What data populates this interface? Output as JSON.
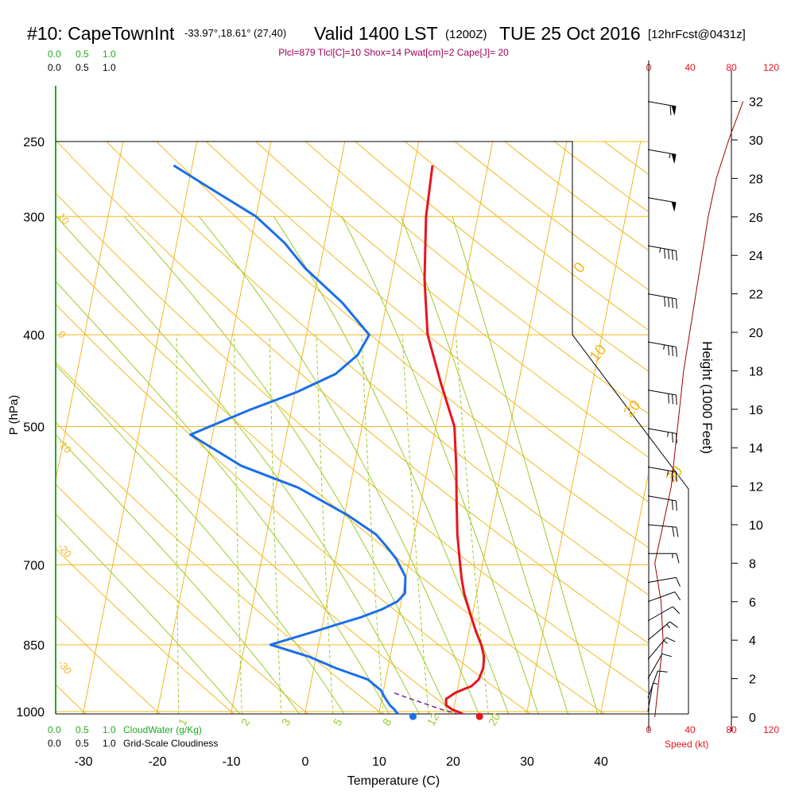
{
  "header": {
    "station": "#10: CapeTownInt",
    "coords": "-33.97°,18.61° (27,40)",
    "valid": "Valid 1400 LST",
    "utc": "(1200Z)",
    "date": "TUE 25 Oct 2016",
    "forecast": "[12hrFcst@0431z]",
    "indices": "Plcl=879 Tlcl[C]=10 Shox=14 Pwat[cm]=2 Cape[J]= 20"
  },
  "scales": {
    "cloudwater_top": [
      "0.0",
      "0.5",
      "1.0"
    ],
    "cloudiness_top": [
      "0.0",
      "0.5",
      "1.0"
    ],
    "cloudwater_bottom": [
      "0.0",
      "0.5",
      "1.0"
    ],
    "cloudwater_label": "CloudWater (g/Kg)",
    "cloudiness_bottom": [
      "0.0",
      "0.5",
      "1.0"
    ],
    "cloudiness_label": "Grid-Scale Cloudiness",
    "speed_top": [
      "0",
      "40",
      "80",
      "120"
    ],
    "speed_bottom": [
      "0",
      "40",
      "80",
      "120"
    ],
    "speed_label": "Speed (kt)"
  },
  "chart_data": {
    "type": "line",
    "title": "Skew-T log-P sounding",
    "xlabel": "Temperature (C)",
    "ylabel": "P (hPa)",
    "y2label": "Height (1000 Feet)",
    "x_ticks": [
      -30,
      -20,
      -10,
      0,
      10,
      20,
      30,
      40
    ],
    "pressure_ticks": [
      250,
      300,
      400,
      500,
      700,
      850,
      1000
    ],
    "height_ticks": [
      0,
      2,
      4,
      6,
      8,
      10,
      12,
      14,
      16,
      18,
      20,
      22,
      24,
      26,
      28,
      30,
      32
    ],
    "xlim": [
      -34,
      46
    ],
    "plim": [
      1020,
      250
    ],
    "isotherm_labels": [
      {
        "text": "10",
        "p": 300
      },
      {
        "text": "0",
        "p": 400
      },
      {
        "text": "-10",
        "p": 520
      },
      {
        "text": "-20",
        "p": 670
      },
      {
        "text": "-30",
        "p": 890
      }
    ],
    "dry_adiabat_labels": [
      {
        "text": "0",
        "p": 345
      },
      {
        "text": "10",
        "p": 428
      },
      {
        "text": "20",
        "p": 490
      },
      {
        "text": "30",
        "p": 575
      }
    ],
    "mixing_ratio_labels": [
      "1",
      "2",
      "3",
      "5",
      "8",
      "12",
      "20"
    ],
    "series": [
      {
        "name": "Temperature",
        "color": "#e8141e",
        "p": [
          1012,
          1003,
          995,
          985,
          970,
          955,
          940,
          925,
          900,
          875,
          850,
          825,
          800,
          775,
          750,
          725,
          700,
          650,
          600,
          550,
          500,
          450,
          400,
          350,
          300,
          265
        ],
        "value": [
          22.0,
          21.0,
          19.8,
          18.9,
          18.7,
          19.8,
          21.8,
          22.6,
          22.9,
          22.7,
          22.0,
          21.0,
          20.1,
          19.2,
          18.3,
          17.6,
          17.0,
          15.8,
          14.8,
          13.8,
          12.5,
          9.5,
          6.4,
          4.5,
          3.0,
          2.5
        ]
      },
      {
        "name": "Dewpoint",
        "color": "#1a6ee8",
        "p": [
          1012,
          1003,
          995,
          985,
          965,
          950,
          925,
          900,
          875,
          850,
          825,
          810,
          795,
          780,
          765,
          750,
          720,
          690,
          670,
          650,
          620,
          580,
          550,
          510,
          480,
          460,
          440,
          420,
          400,
          370,
          340,
          320,
          300,
          280,
          265
        ],
        "value": [
          13.2,
          12.4,
          12.0,
          11.3,
          10.3,
          9.7,
          7.6,
          3.0,
          -1.0,
          -6.5,
          -1.3,
          1.8,
          5.0,
          7.6,
          9.5,
          10.3,
          9.9,
          8.2,
          6.6,
          4.8,
          0.4,
          -7.0,
          -15.3,
          -23.0,
          -15.6,
          -9.8,
          -5.0,
          -2.5,
          -1.5,
          -6.0,
          -12.0,
          -15.4,
          -20.0,
          -27.0,
          -32.5
        ]
      }
    ],
    "parcel": {
      "name": "Parcel trace",
      "color": "#7a1fa2",
      "p": [
        1012,
        995,
        980,
        968,
        955
      ],
      "value": [
        22.0,
        18.4,
        15.8,
        13.6,
        11.4
      ]
    },
    "surface_markers": [
      {
        "name": "surface dewpoint",
        "value": 14.7,
        "color": "#1a6ee8"
      },
      {
        "name": "surface temperature",
        "value": 23.7,
        "color": "#e8141e"
      }
    ],
    "wind_speed_profile": {
      "name": "Wind speed",
      "color": "#a00000",
      "height_kft": [
        0,
        2,
        4,
        6,
        8,
        10,
        12,
        14,
        16,
        18,
        20,
        22,
        24,
        26,
        28,
        30,
        32
      ],
      "speed_kt": [
        6,
        10,
        14,
        12,
        6,
        14,
        22,
        26,
        30,
        34,
        40,
        46,
        52,
        58,
        66,
        78,
        92
      ]
    },
    "wind_barbs": [
      {
        "height_kft": 0.3,
        "speed_kt": 5,
        "dir": 190
      },
      {
        "height_kft": 1.0,
        "speed_kt": 10,
        "dir": 200
      },
      {
        "height_kft": 2.0,
        "speed_kt": 12,
        "dir": 210
      },
      {
        "height_kft": 3.0,
        "speed_kt": 15,
        "dir": 220
      },
      {
        "height_kft": 4.0,
        "speed_kt": 15,
        "dir": 230
      },
      {
        "height_kft": 5.0,
        "speed_kt": 12,
        "dir": 240
      },
      {
        "height_kft": 6.0,
        "speed_kt": 10,
        "dir": 250
      },
      {
        "height_kft": 7.0,
        "speed_kt": 10,
        "dir": 260
      },
      {
        "height_kft": 8.5,
        "speed_kt": 15,
        "dir": 270
      },
      {
        "height_kft": 10.0,
        "speed_kt": 20,
        "dir": 275
      },
      {
        "height_kft": 11.5,
        "speed_kt": 20,
        "dir": 280
      },
      {
        "height_kft": 13.0,
        "speed_kt": 25,
        "dir": 280
      },
      {
        "height_kft": 15.0,
        "speed_kt": 25,
        "dir": 280
      },
      {
        "height_kft": 17.0,
        "speed_kt": 30,
        "dir": 280
      },
      {
        "height_kft": 19.5,
        "speed_kt": 35,
        "dir": 280
      },
      {
        "height_kft": 22.0,
        "speed_kt": 40,
        "dir": 280
      },
      {
        "height_kft": 24.5,
        "speed_kt": 45,
        "dir": 280
      },
      {
        "height_kft": 27.0,
        "speed_kt": 50,
        "dir": 280
      },
      {
        "height_kft": 29.5,
        "speed_kt": 55,
        "dir": 280
      },
      {
        "height_kft": 32.0,
        "speed_kt": 60,
        "dir": 280
      }
    ]
  }
}
